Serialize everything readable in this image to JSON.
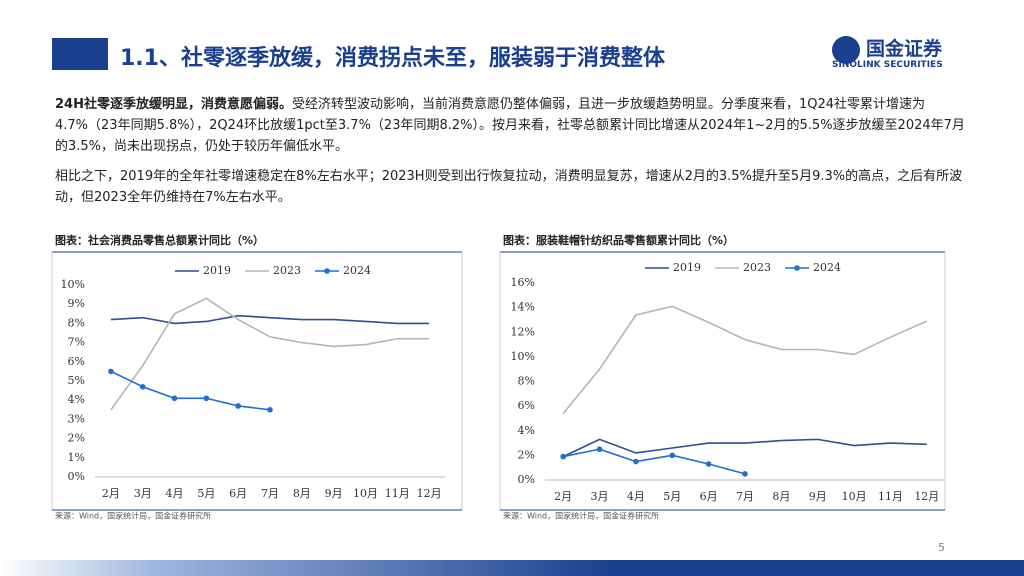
{
  "header": {
    "title": "1.1、社零逐季放缓，消费拐点未至，服装弱于消费整体",
    "logo_cn": "国金证券",
    "logo_en": "SINOLINK SECURITIES"
  },
  "paragraphs": [
    {
      "lead": "24H社零逐季放缓明显，消费意愿偏弱。",
      "text": "受经济转型波动影响，当前消费意愿仍整体偏弱，且进一步放缓趋势明显。分季度来看，1Q24社零累计增速为4.7%（23年同期5.8%），2Q24环比放缓1pct至3.7%（23年同期8.2%）。按月来看，社零总额累计同比增速从2024年1~2月的5.5%逐步放缓至2024年7月的3.5%，尚未出现拐点，仍处于较历年偏低水平。"
    },
    {
      "text": "相比之下，2019年的全年社零增速稳定在8%左右水平；2023H则受到出行恢复拉动，消费明显复苏，增速从2月的3.5%提升至5月9.3%的高点，之后有所波动，但2023全年仍维持在7%左右水平。"
    }
  ],
  "chart_data": [
    {
      "type": "line",
      "title": "图表：社会消费品零售总额累计同比（%）",
      "source": "来源：Wind，国家统计局，国金证券研究所",
      "categories": [
        "2月",
        "3月",
        "4月",
        "5月",
        "6月",
        "7月",
        "8月",
        "9月",
        "10月",
        "11月",
        "12月"
      ],
      "ylim": [
        0,
        10
      ],
      "yticks": [
        {
          "value": 0,
          "label": "0%"
        },
        {
          "value": 1,
          "label": "1%"
        },
        {
          "value": 2,
          "label": "2%"
        },
        {
          "value": 3,
          "label": "3%"
        },
        {
          "value": 4,
          "label": "4%"
        },
        {
          "value": 5,
          "label": "5%"
        },
        {
          "value": 6,
          "label": "6%"
        },
        {
          "value": 7,
          "label": "7%"
        },
        {
          "value": 8,
          "label": "8%"
        },
        {
          "value": 9,
          "label": "9%"
        },
        {
          "value": 10,
          "label": "10%"
        }
      ],
      "series": [
        {
          "name": "2019",
          "color": "#2f4f8f",
          "values": [
            8.2,
            8.3,
            8.0,
            8.1,
            8.4,
            8.3,
            8.2,
            8.2,
            8.1,
            8.0,
            8.0
          ]
        },
        {
          "name": "2023",
          "color": "#b5b5b5",
          "values": [
            3.5,
            5.8,
            8.5,
            9.3,
            8.2,
            7.3,
            7.0,
            6.8,
            6.9,
            7.2,
            7.2
          ]
        },
        {
          "name": "2024",
          "color": "#1f6fd0",
          "marker": true,
          "values": [
            5.5,
            4.7,
            4.1,
            4.1,
            3.7,
            3.5,
            null,
            null,
            null,
            null,
            null
          ]
        }
      ]
    },
    {
      "type": "line",
      "title": "图表：服装鞋帽针纺织品零售额累计同比（%）",
      "source": "来源：Wind，国家统计局，国金证券研究所",
      "categories": [
        "2月",
        "3月",
        "4月",
        "5月",
        "6月",
        "7月",
        "8月",
        "9月",
        "10月",
        "11月",
        "12月"
      ],
      "ylim": [
        0,
        16
      ],
      "yticks": [
        {
          "value": 0,
          "label": "0%"
        },
        {
          "value": 2,
          "label": "2%"
        },
        {
          "value": 4,
          "label": "4%"
        },
        {
          "value": 6,
          "label": "6%"
        },
        {
          "value": 8,
          "label": "8%"
        },
        {
          "value": 10,
          "label": "10%"
        },
        {
          "value": 12,
          "label": "12%"
        },
        {
          "value": 14,
          "label": "14%"
        },
        {
          "value": 16,
          "label": "16%"
        }
      ],
      "series": [
        {
          "name": "2019",
          "color": "#2f4f8f",
          "values": [
            1.9,
            3.3,
            2.2,
            2.6,
            3.0,
            3.0,
            3.2,
            3.3,
            2.8,
            3.0,
            2.9
          ]
        },
        {
          "name": "2023",
          "color": "#b5b5b5",
          "values": [
            5.4,
            9.0,
            13.4,
            14.1,
            12.8,
            11.4,
            10.6,
            10.6,
            10.2,
            11.6,
            12.9
          ]
        },
        {
          "name": "2024",
          "color": "#1f6fd0",
          "marker": true,
          "values": [
            1.9,
            2.5,
            1.5,
            2.0,
            1.3,
            0.5,
            null,
            null,
            null,
            null,
            null
          ]
        }
      ]
    }
  ],
  "page_number": "5"
}
